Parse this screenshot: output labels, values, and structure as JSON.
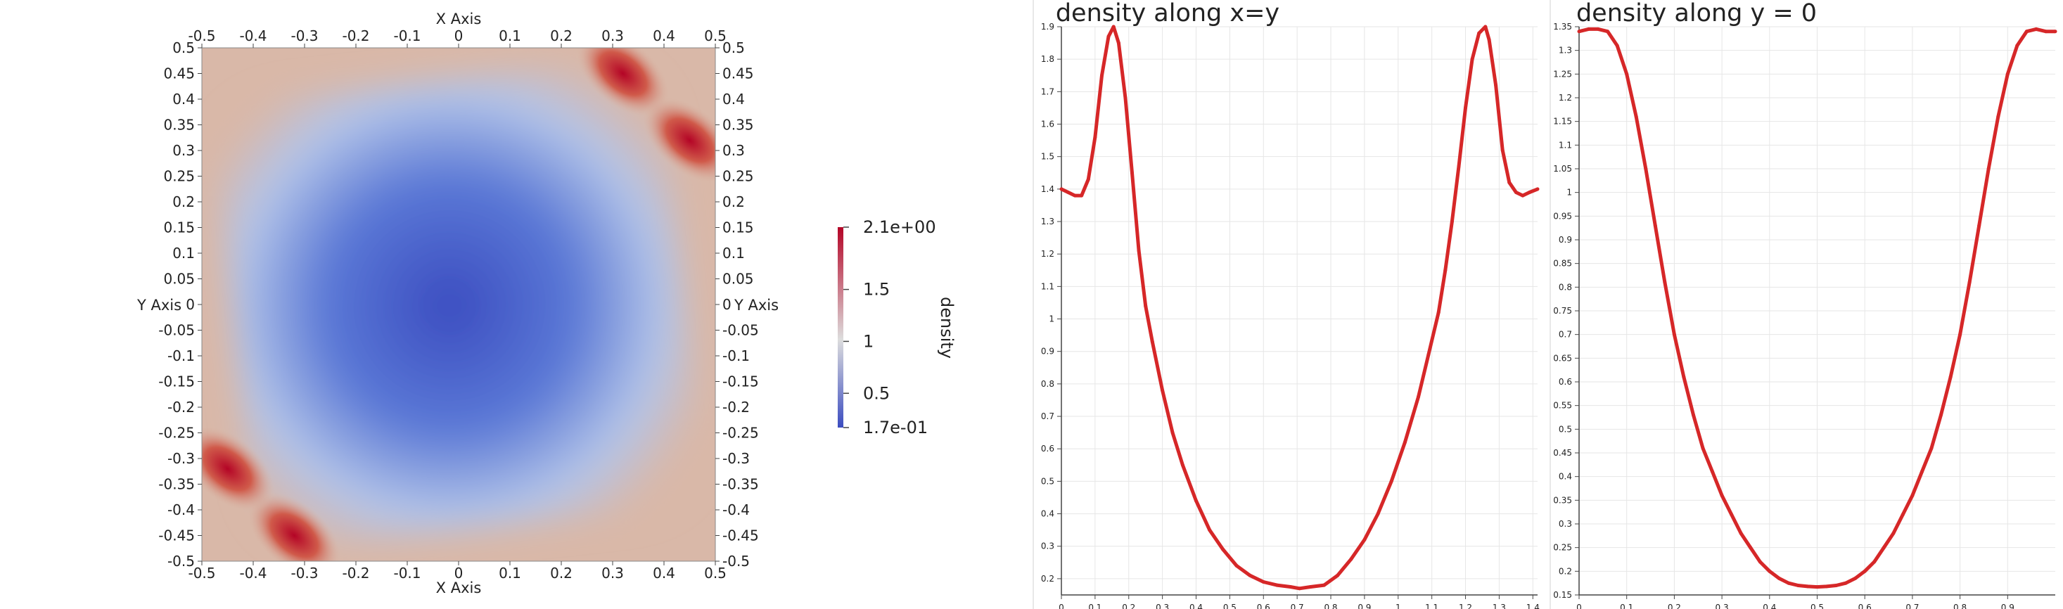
{
  "colors": {
    "low": "#3b4cc0",
    "mid": "#dddddd",
    "high": "#b40426",
    "line": "#d62728",
    "grid": "#e6e6e6",
    "axis": "#444444"
  },
  "chart_data": [
    {
      "type": "heatmap",
      "title": "",
      "xlabel": "X Axis",
      "ylabel": "Y Axis",
      "xlim": [
        -0.5,
        0.5
      ],
      "ylim": [
        -0.5,
        0.5
      ],
      "x_ticks": [
        "-0.5",
        "-0.4",
        "-0.3",
        "-0.2",
        "-0.1",
        "0",
        "0.1",
        "0.2",
        "0.3",
        "0.4",
        "0.5"
      ],
      "y_ticks": [
        "0.5",
        "0.45",
        "0.4",
        "0.35",
        "0.3",
        "0.25",
        "0.2",
        "0.15",
        "0.1",
        "0.05",
        "0",
        "-0.05",
        "-0.1",
        "-0.15",
        "-0.2",
        "-0.25",
        "-0.3",
        "-0.35",
        "-0.4",
        "-0.45",
        "-0.5"
      ],
      "colorbar": {
        "label": "density",
        "range": [
          0.17,
          2.1
        ],
        "tick_labels": [
          "2.1e+00",
          "1.5",
          "1",
          "0.5",
          "1.7e-01"
        ],
        "tick_values": [
          2.1,
          1.5,
          1.0,
          0.5,
          0.17
        ]
      },
      "high_density_regions": [
        {
          "x": 0.32,
          "y": 0.45,
          "value": 2.1
        },
        {
          "x": 0.45,
          "y": 0.32,
          "value": 2.1
        },
        {
          "x": -0.32,
          "y": -0.45,
          "value": 2.1
        },
        {
          "x": -0.45,
          "y": -0.32,
          "value": 2.1
        }
      ],
      "minimum": {
        "x": -0.05,
        "y": 0.0,
        "value": 0.17
      }
    },
    {
      "type": "line",
      "title": "density along x=y",
      "xlabel": "",
      "ylabel": "",
      "xlim": [
        0,
        1.414
      ],
      "ylim": [
        0.15,
        1.9
      ],
      "grid": true,
      "x_ticks": [
        "0",
        "0.1",
        "0.2",
        "0.3",
        "0.4",
        "0.5",
        "0.6",
        "0.7",
        "0.8",
        "0.9",
        "1",
        "1.1",
        "1.2",
        "1.3",
        "1.4"
      ],
      "y_ticks": [
        "0.2",
        "0.3",
        "0.4",
        "0.5",
        "0.6",
        "0.7",
        "0.8",
        "0.9",
        "1",
        "1.1",
        "1.2",
        "1.3",
        "1.4",
        "1.5",
        "1.6",
        "1.7",
        "1.8",
        "1.9"
      ],
      "x": [
        0,
        0.02,
        0.04,
        0.06,
        0.08,
        0.1,
        0.12,
        0.14,
        0.155,
        0.17,
        0.19,
        0.21,
        0.23,
        0.25,
        0.27,
        0.3,
        0.33,
        0.36,
        0.4,
        0.44,
        0.48,
        0.52,
        0.56,
        0.6,
        0.64,
        0.68,
        0.707,
        0.74,
        0.78,
        0.82,
        0.86,
        0.9,
        0.94,
        0.98,
        1.02,
        1.06,
        1.09,
        1.12,
        1.14,
        1.16,
        1.18,
        1.2,
        1.22,
        1.24,
        1.259,
        1.27,
        1.29,
        1.31,
        1.33,
        1.35,
        1.37,
        1.39,
        1.414
      ],
      "y": [
        1.4,
        1.39,
        1.38,
        1.38,
        1.43,
        1.56,
        1.75,
        1.87,
        1.9,
        1.85,
        1.68,
        1.45,
        1.21,
        1.04,
        0.93,
        0.78,
        0.65,
        0.55,
        0.44,
        0.35,
        0.29,
        0.24,
        0.21,
        0.19,
        0.18,
        0.175,
        0.17,
        0.175,
        0.18,
        0.21,
        0.26,
        0.32,
        0.4,
        0.5,
        0.62,
        0.76,
        0.89,
        1.02,
        1.15,
        1.3,
        1.47,
        1.65,
        1.8,
        1.88,
        1.9,
        1.86,
        1.72,
        1.52,
        1.42,
        1.39,
        1.38,
        1.39,
        1.4
      ]
    },
    {
      "type": "line",
      "title": "density along y = 0",
      "xlabel": "",
      "ylabel": "",
      "xlim": [
        0,
        1
      ],
      "ylim": [
        0.15,
        1.35
      ],
      "grid": true,
      "x_ticks": [
        "0",
        "0.1",
        "0.2",
        "0.3",
        "0.4",
        "0.5",
        "0.6",
        "0.7",
        "0.8",
        "0.9"
      ],
      "y_ticks": [
        "0.15",
        "0.2",
        "0.25",
        "0.3",
        "0.35",
        "0.4",
        "0.45",
        "0.5",
        "0.55",
        "0.6",
        "0.65",
        "0.7",
        "0.75",
        "0.8",
        "0.85",
        "0.9",
        "0.95",
        "1",
        "1.05",
        "1.1",
        "1.15",
        "1.2",
        "1.25",
        "1.3",
        "1.35"
      ],
      "x": [
        0,
        0.02,
        0.04,
        0.06,
        0.08,
        0.1,
        0.12,
        0.14,
        0.16,
        0.18,
        0.2,
        0.22,
        0.24,
        0.26,
        0.28,
        0.3,
        0.32,
        0.34,
        0.36,
        0.38,
        0.4,
        0.42,
        0.44,
        0.46,
        0.48,
        0.5,
        0.52,
        0.54,
        0.56,
        0.58,
        0.6,
        0.62,
        0.64,
        0.66,
        0.68,
        0.7,
        0.72,
        0.74,
        0.76,
        0.78,
        0.8,
        0.82,
        0.84,
        0.86,
        0.88,
        0.9,
        0.92,
        0.94,
        0.96,
        0.98,
        1.0
      ],
      "y": [
        1.34,
        1.345,
        1.345,
        1.34,
        1.31,
        1.25,
        1.16,
        1.05,
        0.93,
        0.81,
        0.7,
        0.61,
        0.53,
        0.46,
        0.41,
        0.36,
        0.32,
        0.28,
        0.25,
        0.22,
        0.2,
        0.185,
        0.175,
        0.17,
        0.168,
        0.167,
        0.168,
        0.17,
        0.175,
        0.185,
        0.2,
        0.22,
        0.25,
        0.28,
        0.32,
        0.36,
        0.41,
        0.46,
        0.53,
        0.61,
        0.7,
        0.81,
        0.93,
        1.05,
        1.16,
        1.25,
        1.31,
        1.34,
        1.345,
        1.34,
        1.34
      ]
    }
  ]
}
